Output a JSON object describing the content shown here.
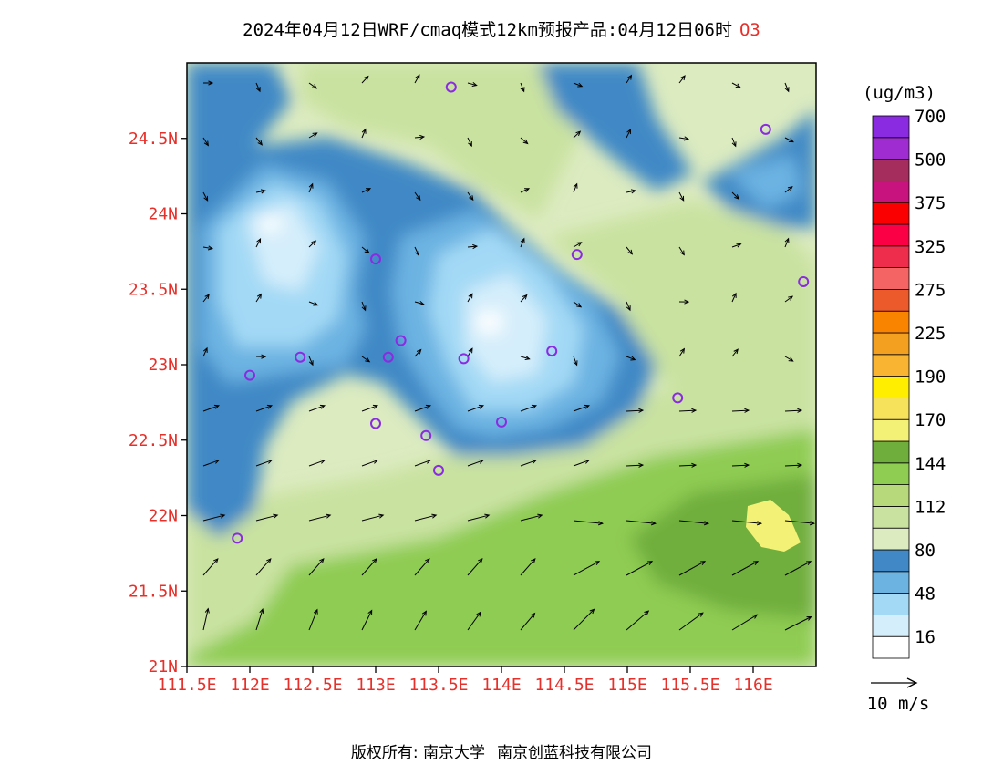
{
  "title": {
    "text": "2024年04月12日WRF/cmaq模式12km预报产品:04月12日06时",
    "pollutant": "O3"
  },
  "map": {
    "lon_range": [
      111.5,
      116.5
    ],
    "lat_range": [
      21.0,
      25.0
    ],
    "lat_labels": [
      "24.5N",
      "24N",
      "23.5N",
      "23N",
      "22.5N",
      "22N",
      "21.5N",
      "21N"
    ],
    "lon_labels": [
      "111.5E",
      "112E",
      "112.5E",
      "113E",
      "113.5E",
      "114E",
      "114.5E",
      "115E",
      "115.5E",
      "116E"
    ],
    "stations": [
      {
        "lon": 113.6,
        "lat": 24.84
      },
      {
        "lon": 116.1,
        "lat": 24.56
      },
      {
        "lon": 113.0,
        "lat": 23.7
      },
      {
        "lon": 114.6,
        "lat": 23.73
      },
      {
        "lon": 116.4,
        "lat": 23.55
      },
      {
        "lon": 112.4,
        "lat": 23.05
      },
      {
        "lon": 112.0,
        "lat": 22.93
      },
      {
        "lon": 113.1,
        "lat": 23.05
      },
      {
        "lon": 113.2,
        "lat": 23.16
      },
      {
        "lon": 113.7,
        "lat": 23.04
      },
      {
        "lon": 114.4,
        "lat": 23.09
      },
      {
        "lon": 115.4,
        "lat": 22.78
      },
      {
        "lon": 113.0,
        "lat": 22.61
      },
      {
        "lon": 113.4,
        "lat": 22.53
      },
      {
        "lon": 114.0,
        "lat": 22.62
      },
      {
        "lon": 113.5,
        "lat": 22.3
      },
      {
        "lon": 111.9,
        "lat": 21.85
      }
    ]
  },
  "colorbar": {
    "unit": "(ug/m3)",
    "colors": [
      "#ffffff",
      "#d5eefb",
      "#a3d9f5",
      "#6cb3e2",
      "#4189c6",
      "#dcebc0",
      "#c9e2a0",
      "#b7d97b",
      "#8fcc52",
      "#6fae3c",
      "#f3f276",
      "#f7e25c",
      "#ffee00",
      "#f9b431",
      "#f39f1f",
      "#f98400",
      "#ec5a2b",
      "#f46464",
      "#ee2c4c",
      "#fb0045",
      "#fb0000",
      "#c8127d",
      "#a52d5e",
      "#9e2cd0",
      "#8a2be2"
    ],
    "labels": [
      "16",
      "48",
      "80",
      "112",
      "144",
      "170",
      "190",
      "225",
      "275",
      "325",
      "375",
      "500",
      "700"
    ]
  },
  "wind_legend": {
    "label": "10 m/s"
  },
  "footer": {
    "left": "版权所有: 南京大学",
    "right": "南京创蓝科技有限公司"
  }
}
